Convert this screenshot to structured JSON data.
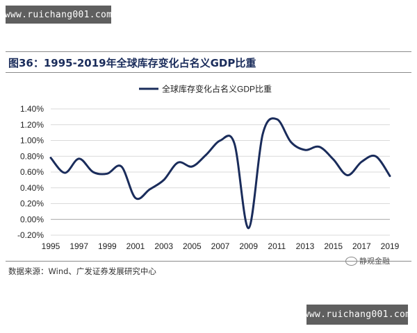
{
  "watermark": {
    "top": "www.ruichang001.com",
    "bottom": "www.ruichang001.com"
  },
  "figure_title": "图36：1995-2019年全球库存变化占名义GDP比重",
  "source_note": "数据来源：Wind、广发证券发展研究中心",
  "wechat_mark": "静观金融",
  "colors": {
    "line": "#1a2c5b",
    "title": "#1a2c5b",
    "grid": "#d9d9d9"
  },
  "chart_data": {
    "type": "line",
    "title": "",
    "xlabel": "",
    "ylabel": "",
    "x": [
      1995,
      1996,
      1997,
      1998,
      1999,
      2000,
      2001,
      2002,
      2003,
      2004,
      2005,
      2006,
      2007,
      2008,
      2009,
      2010,
      2011,
      2012,
      2013,
      2014,
      2015,
      2016,
      2017,
      2018,
      2019
    ],
    "series": [
      {
        "name": "全球库存变化占名义GDP比重",
        "values": [
          0.78,
          0.59,
          0.77,
          0.6,
          0.58,
          0.67,
          0.27,
          0.38,
          0.5,
          0.72,
          0.67,
          0.82,
          1.0,
          0.96,
          -0.11,
          1.08,
          1.27,
          0.98,
          0.88,
          0.92,
          0.76,
          0.56,
          0.73,
          0.8,
          0.55
        ]
      }
    ],
    "ylim": [
      -0.2,
      1.4
    ],
    "yticks": [
      -0.2,
      0.0,
      0.2,
      0.4,
      0.6,
      0.8,
      1.0,
      1.2,
      1.4
    ],
    "ytick_labels": [
      "-0.20%",
      "0.00%",
      "0.20%",
      "0.40%",
      "0.60%",
      "0.80%",
      "1.00%",
      "1.20%",
      "1.40%"
    ],
    "xtick_labels": [
      "1995",
      "1997",
      "1999",
      "2001",
      "2003",
      "2005",
      "2007",
      "2009",
      "2011",
      "2013",
      "2015",
      "2017",
      "2019"
    ],
    "grid": true,
    "legend": "top-center"
  }
}
